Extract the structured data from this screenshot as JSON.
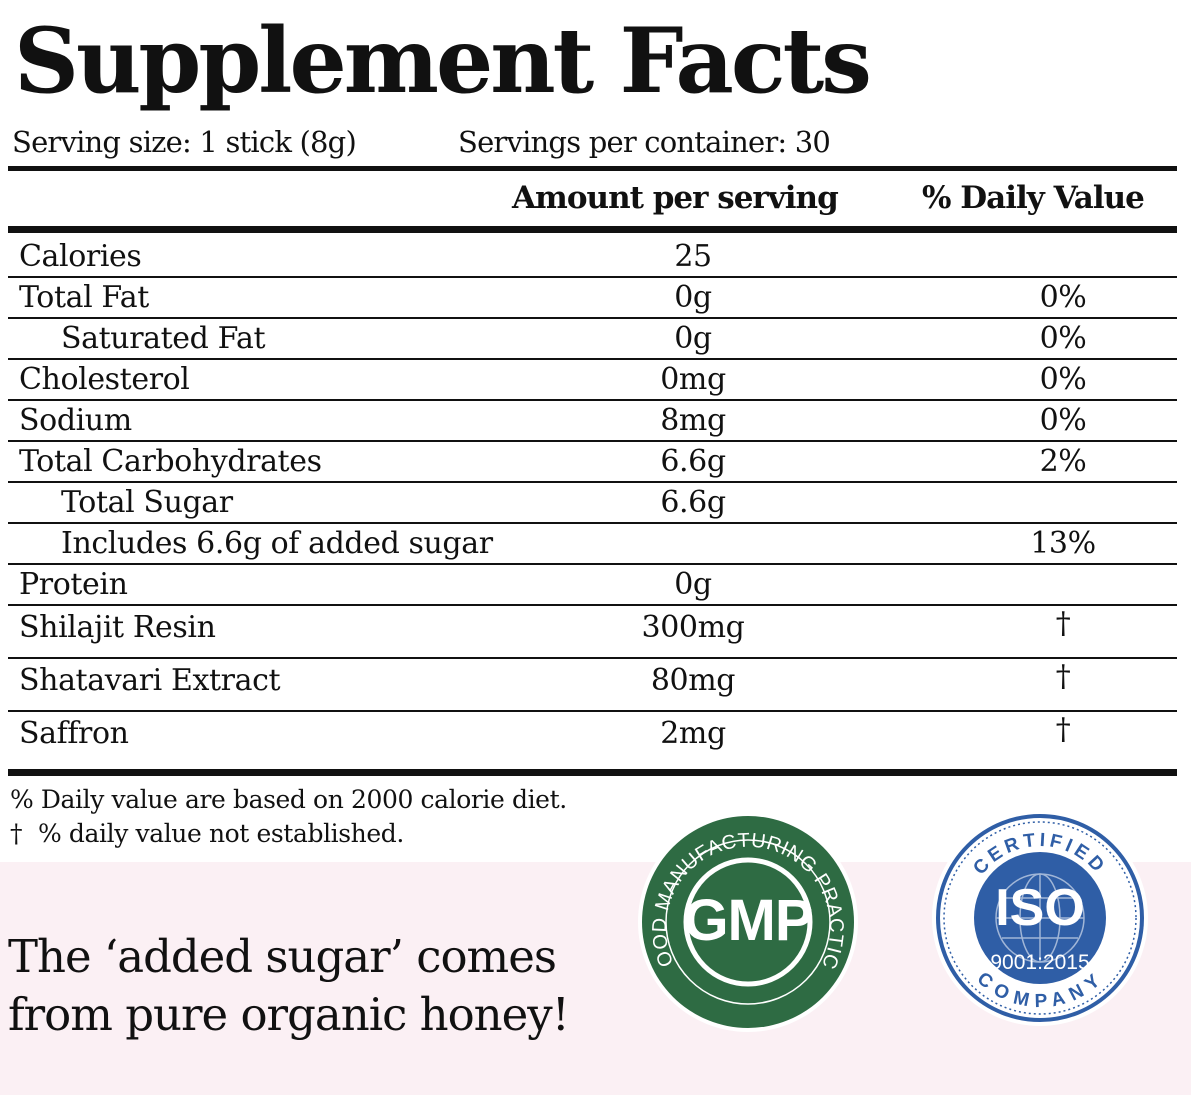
{
  "title": "Supplement Facts",
  "serving_size": "Serving size: 1 stick (8g)",
  "servings_per_container": "Servings per container: 30",
  "columns": {
    "amount": "Amount per serving",
    "daily_value": "% Daily Value"
  },
  "rows": [
    {
      "name": "Calories",
      "amount": "25",
      "dv": ""
    },
    {
      "name": "Total Fat",
      "amount": "0g",
      "dv": "0%"
    },
    {
      "name": "Saturated Fat",
      "amount": "0g",
      "dv": "0%"
    },
    {
      "name": "Cholesterol",
      "amount": "0mg",
      "dv": "0%"
    },
    {
      "name": "Sodium",
      "amount": "8mg",
      "dv": "0%"
    },
    {
      "name": "Total Carbohydrates",
      "amount": "6.6g",
      "dv": "2%"
    },
    {
      "name": "Total Sugar",
      "amount": "6.6g",
      "dv": ""
    },
    {
      "name": "Includes 6.6g of added sugar",
      "amount": "",
      "dv": "13%"
    },
    {
      "name": "Protein",
      "amount": "0g",
      "dv": ""
    },
    {
      "name": "Shilajit Resin",
      "amount": "300mg",
      "dv": "†"
    },
    {
      "name": "Shatavari Extract",
      "amount": "80mg",
      "dv": "†"
    },
    {
      "name": "Saffron",
      "amount": "2mg",
      "dv": "†"
    }
  ],
  "footnotes": {
    "daily_value_basis": "% Daily value are based on 2000 calorie diet.",
    "dagger_symbol": "†",
    "dagger_note": "% daily value not established."
  },
  "tagline": {
    "line1": "The ‘added sugar’ comes",
    "line2": "from pure organic honey!"
  },
  "badges": {
    "gmp": {
      "center_text": "GMP",
      "ring_text": "GOOD MANUFACTURING PRACTICE",
      "color": "#2e6b43"
    },
    "iso": {
      "top_text": "CERTIFIED",
      "center_text": "ISO",
      "number": "9001:2015",
      "bottom_text": "COMPANY",
      "color": "#2f5ea6"
    }
  },
  "colors": {
    "ink": "#111111",
    "pink_background": "#fbf0f4"
  }
}
